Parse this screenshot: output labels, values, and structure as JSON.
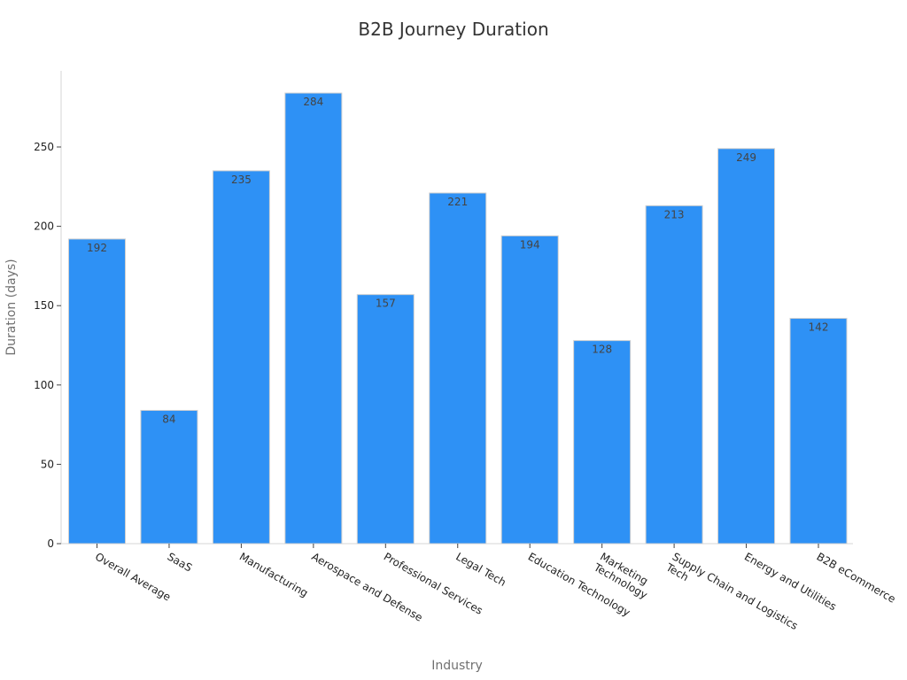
{
  "chart_data": {
    "type": "bar",
    "title": "B2B Journey Duration",
    "xlabel": "Industry",
    "ylabel": "Duration (days)",
    "categories": [
      "Overall Average",
      "SaaS",
      "Manufacturing",
      "Aerospace and Defense",
      "Professional Services",
      "Legal Tech",
      "Education Technology",
      "Marketing Technology",
      "Supply Chain and Logistics Tech",
      "Energy and Utilities",
      "B2B eCommerce"
    ],
    "category_lines": [
      [
        "Overall Average"
      ],
      [
        "SaaS"
      ],
      [
        "Manufacturing"
      ],
      [
        "Aerospace and Defense"
      ],
      [
        "Professional Services"
      ],
      [
        "Legal Tech"
      ],
      [
        "Education Technology"
      ],
      [
        "Marketing",
        "Technology"
      ],
      [
        "Supply Chain and Logistics",
        "Tech"
      ],
      [
        "Energy and Utilities"
      ],
      [
        "B2B eCommerce"
      ]
    ],
    "values": [
      192,
      84,
      235,
      284,
      157,
      221,
      194,
      128,
      213,
      249,
      142
    ],
    "yticks": [
      0,
      50,
      100,
      150,
      200,
      250
    ],
    "ylim": [
      0,
      298
    ],
    "bar_color": "#2e91f5",
    "grid": false,
    "data_labels": true
  }
}
